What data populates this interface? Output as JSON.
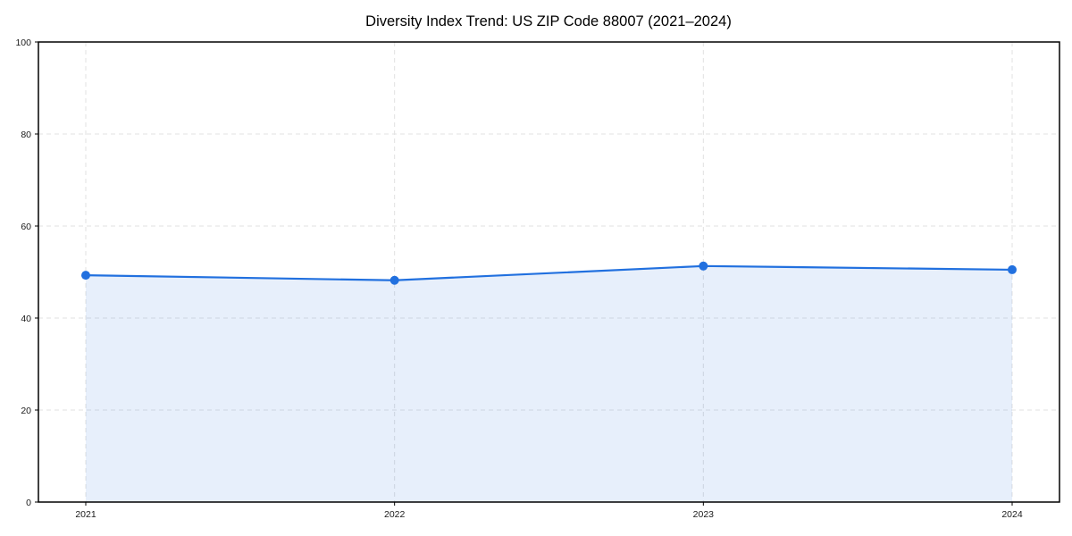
{
  "chart_data": {
    "type": "area",
    "title": "Diversity Index Trend: US ZIP Code 88007 (2021–2024)",
    "x": [
      "2021",
      "2022",
      "2023",
      "2024"
    ],
    "series": [
      {
        "name": "Diversity Index",
        "values": [
          49.3,
          48.2,
          51.3,
          50.5
        ]
      }
    ],
    "xlabel": "",
    "ylabel": "",
    "ylim": [
      0,
      100
    ],
    "yticks": [
      0,
      20,
      40,
      60,
      80,
      100
    ],
    "grid": true,
    "grid_style": "dashed",
    "legend_position": "none",
    "line_color": "#2170df",
    "marker_color": "#2170df",
    "fill_color": "rgba(33, 113, 223, 0.11)",
    "grid_color": "#e1e1e1",
    "axis_color": "#000000",
    "tick_label_color": "#1a1a1a",
    "background_color": "#ffffff"
  }
}
